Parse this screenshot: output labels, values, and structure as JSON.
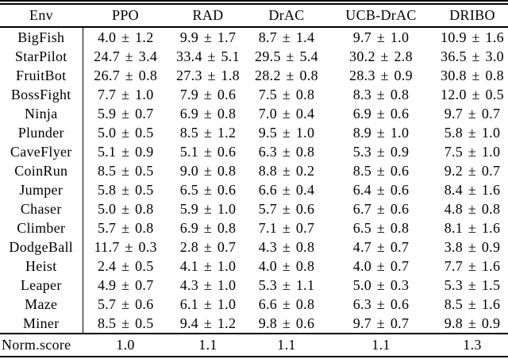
{
  "meta": {
    "background_color": "#ffffff",
    "text_color": "#000000",
    "bold_meaning": "best score per environment"
  },
  "table": {
    "header": {
      "env": "Env",
      "methods": [
        "PPO",
        "RAD",
        "DrAC",
        "UCB-DrAC",
        "DRIBO"
      ]
    },
    "rows": [
      {
        "env": "BigFish",
        "values": [
          "4.0 ± 1.2",
          "9.9 ± 1.7",
          "8.7 ± 1.4",
          "9.7 ± 1.0",
          "10.9 ± 1.6"
        ],
        "bold": [
          false,
          false,
          false,
          false,
          true
        ]
      },
      {
        "env": "StarPilot",
        "values": [
          "24.7 ± 3.4",
          "33.4 ± 5.1",
          "29.5 ± 5.4",
          "30.2 ± 2.8",
          "36.5 ± 3.0"
        ],
        "bold": [
          false,
          false,
          false,
          false,
          true
        ]
      },
      {
        "env": "FruitBot",
        "values": [
          "26.7 ± 0.8",
          "27.3 ± 1.8",
          "28.2 ± 0.8",
          "28.3 ± 0.9",
          "30.8 ± 0.8"
        ],
        "bold": [
          false,
          false,
          false,
          false,
          true
        ]
      },
      {
        "env": "BossFight",
        "values": [
          "7.7 ± 1.0",
          "7.9 ± 0.6",
          "7.5 ± 0.8",
          "8.3 ± 0.8",
          "12.0 ± 0.5"
        ],
        "bold": [
          false,
          false,
          false,
          false,
          true
        ]
      },
      {
        "env": "Ninja",
        "values": [
          "5.9 ± 0.7",
          "6.9 ± 0.8",
          "7.0 ± 0.4",
          "6.9 ± 0.6",
          "9.7 ± 0.7"
        ],
        "bold": [
          false,
          false,
          false,
          false,
          true
        ]
      },
      {
        "env": "Plunder",
        "values": [
          "5.0 ± 0.5",
          "8.5 ± 1.2",
          "9.5 ± 1.0",
          "8.9 ± 1.0",
          "5.8 ± 1.0"
        ],
        "bold": [
          false,
          false,
          true,
          false,
          false
        ]
      },
      {
        "env": "CaveFlyer",
        "values": [
          "5.1 ± 0.9",
          "5.1 ± 0.6",
          "6.3 ± 0.8",
          "5.3 ± 0.9",
          "7.5 ± 1.0"
        ],
        "bold": [
          false,
          false,
          false,
          false,
          true
        ]
      },
      {
        "env": "CoinRun",
        "values": [
          "8.5 ± 0.5",
          "9.0 ± 0.8",
          "8.8 ± 0.2",
          "8.5 ± 0.6",
          "9.2 ± 0.7"
        ],
        "bold": [
          false,
          false,
          false,
          false,
          true
        ]
      },
      {
        "env": "Jumper",
        "values": [
          "5.8 ± 0.5",
          "6.5 ± 0.6",
          "6.6 ± 0.4",
          "6.4 ± 0.6",
          "8.4 ± 1.6"
        ],
        "bold": [
          false,
          false,
          false,
          false,
          true
        ]
      },
      {
        "env": "Chaser",
        "values": [
          "5.0 ± 0.8",
          "5.9 ± 1.0",
          "5.7 ± 0.6",
          "6.7 ± 0.6",
          "4.8 ± 0.8"
        ],
        "bold": [
          false,
          false,
          false,
          true,
          false
        ]
      },
      {
        "env": "Climber",
        "values": [
          "5.7 ± 0.8",
          "6.9 ± 0.8",
          "7.1 ± 0.7",
          "6.5 ± 0.8",
          "8.1 ± 1.6"
        ],
        "bold": [
          false,
          false,
          false,
          false,
          true
        ]
      },
      {
        "env": "DodgeBall",
        "values": [
          "11.7 ± 0.3",
          "2.8 ± 0.7",
          "4.3 ± 0.8",
          "4.7 ± 0.7",
          "3.8 ± 0.9"
        ],
        "bold": [
          true,
          false,
          false,
          false,
          false
        ]
      },
      {
        "env": "Heist",
        "values": [
          "2.4 ± 0.5",
          "4.1 ± 1.0",
          "4.0 ± 0.8",
          "4.0 ± 0.7",
          "7.7 ± 1.6"
        ],
        "bold": [
          false,
          false,
          false,
          false,
          true
        ]
      },
      {
        "env": "Leaper",
        "values": [
          "4.9 ± 0.7",
          "4.3 ± 1.0",
          "5.3 ± 1.1",
          "5.0 ± 0.3",
          "5.3 ± 1.5"
        ],
        "bold": [
          false,
          false,
          true,
          false,
          true
        ]
      },
      {
        "env": "Maze",
        "values": [
          "5.7 ± 0.6",
          "6.1 ± 1.0",
          "6.6 ± 0.8",
          "6.3 ± 0.6",
          "8.5 ± 1.6"
        ],
        "bold": [
          false,
          false,
          false,
          false,
          true
        ]
      },
      {
        "env": "Miner",
        "values": [
          "8.5 ± 0.5",
          "9.4 ± 1.2",
          "9.8 ± 0.6",
          "9.7 ± 0.7",
          "9.8 ± 0.9"
        ],
        "bold": [
          false,
          false,
          true,
          false,
          true
        ]
      }
    ],
    "footer": {
      "label": "Norm.score",
      "values": [
        "1.0",
        "1.1",
        "1.1",
        "1.1",
        "1.3"
      ],
      "bold": [
        false,
        false,
        false,
        false,
        true
      ]
    }
  }
}
